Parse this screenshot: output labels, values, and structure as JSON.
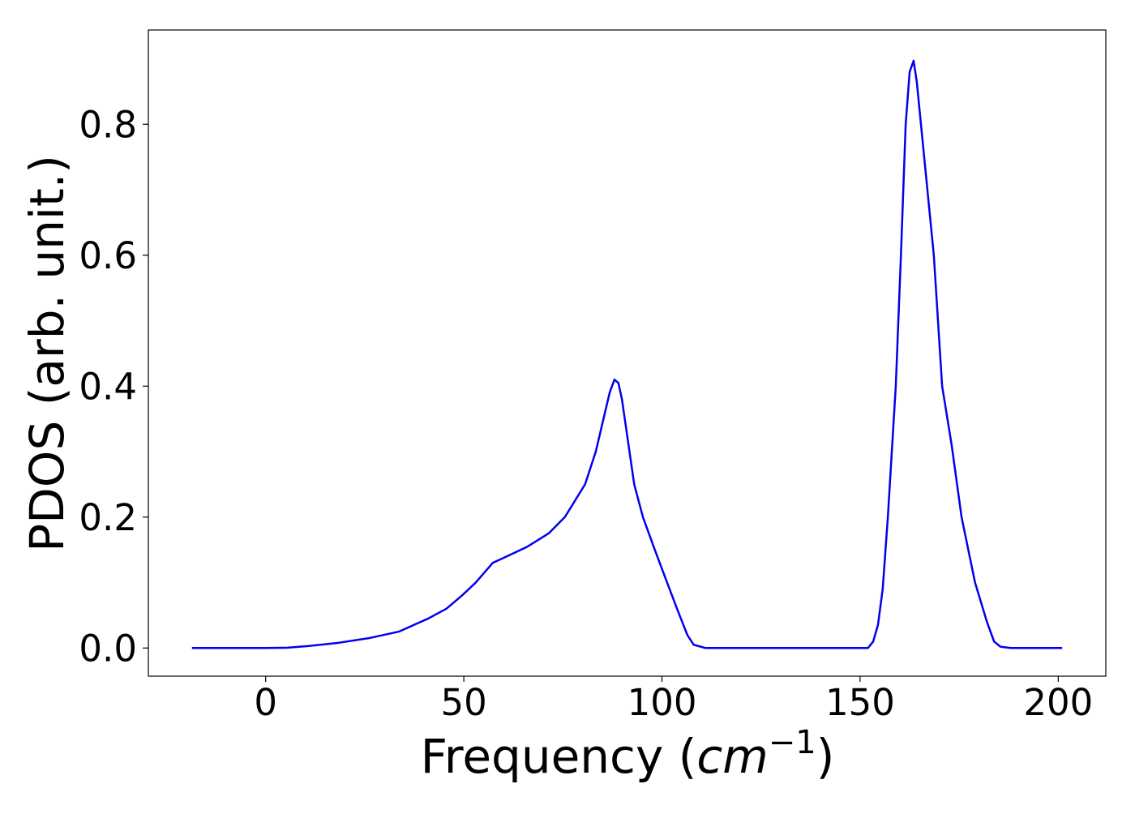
{
  "chart_data": {
    "type": "line",
    "x_label_parts": [
      "Frequency (",
      "cm",
      "−1",
      ")"
    ],
    "y_label": "PDOS (arb. unit.)",
    "x": [
      -18.6,
      0,
      5.5,
      10.6,
      18.4,
      26,
      33.6,
      41,
      45.6,
      49.5,
      53,
      57.3,
      59.8,
      66.1,
      71.4,
      75.5,
      80.6,
      83.3,
      86.8,
      88,
      89,
      89.9,
      93,
      95.2,
      98.2,
      101.3,
      103.8,
      106.4,
      108,
      111,
      152,
      153.3,
      154.5,
      155.7,
      157,
      159,
      160.3,
      161.5,
      162.5,
      163.5,
      164.3,
      168.6,
      170.7,
      173.1,
      175.6,
      179,
      182,
      183.8,
      185.4,
      188,
      201
    ],
    "series": [
      {
        "name": "PDOS",
        "color": "#0000ee",
        "values": [
          0,
          0,
          0.0005,
          0.003,
          0.008,
          0.015,
          0.025,
          0.045,
          0.06,
          0.08,
          0.1,
          0.13,
          0.137,
          0.155,
          0.175,
          0.2,
          0.25,
          0.3,
          0.39,
          0.41,
          0.405,
          0.38,
          0.25,
          0.2,
          0.15,
          0.1,
          0.06,
          0.02,
          0.005,
          0,
          0,
          0.01,
          0.035,
          0.09,
          0.2,
          0.4,
          0.6,
          0.8,
          0.88,
          0.897,
          0.865,
          0.6,
          0.4,
          0.31,
          0.2,
          0.1,
          0.04,
          0.01,
          0.002,
          0,
          0
        ]
      }
    ],
    "xlim": [
      -29.6,
      212
    ],
    "xticks": [
      0,
      50,
      100,
      150,
      200
    ],
    "ylim": [
      -0.043,
      0.944
    ],
    "yticks": [
      {
        "value": 0,
        "label": "0.0"
      },
      {
        "value": 0.2,
        "label": "0.2"
      },
      {
        "value": 0.4,
        "label": "0.4"
      },
      {
        "value": 0.6,
        "label": "0.6"
      },
      {
        "value": 0.8,
        "label": "0.8"
      }
    ]
  }
}
